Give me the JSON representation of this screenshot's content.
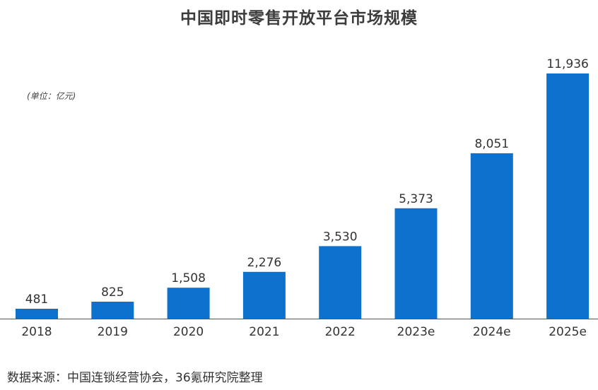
{
  "chart_data": {
    "type": "bar",
    "title": "中国即时零售开放平台市场规模",
    "unit_note": "(单位：亿元)",
    "categories": [
      "2018",
      "2019",
      "2020",
      "2021",
      "2022",
      "2023e",
      "2024e",
      "2025e"
    ],
    "values": [
      481,
      825,
      1508,
      2276,
      3530,
      5373,
      8051,
      11936
    ],
    "value_labels": [
      "481",
      "825",
      "1,508",
      "2,276",
      "3,530",
      "5,373",
      "8,051",
      "11,936"
    ],
    "ylim": [
      0,
      11936
    ],
    "bar_color": "#0d72cd",
    "grid": false,
    "legend": "none"
  },
  "source_text": "数据来源：中国连锁经营协会，36氪研究院整理"
}
